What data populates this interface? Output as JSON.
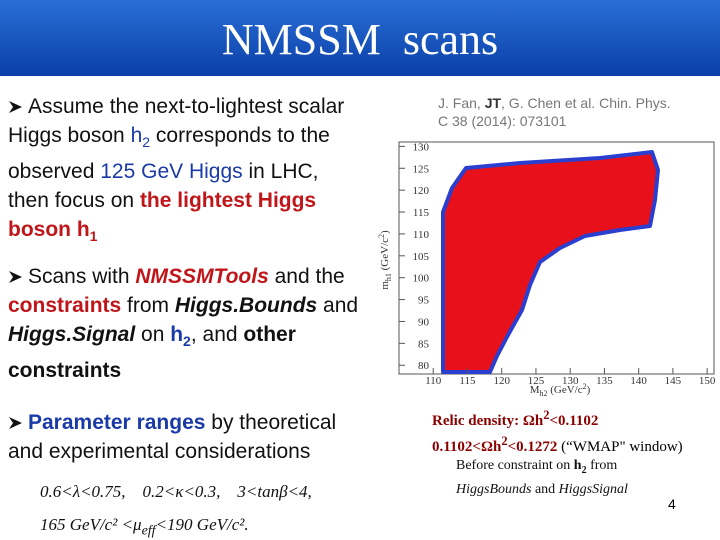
{
  "title": "NMSSM  scans",
  "bullets": [
    {
      "runs": [
        "Assume the next-to-lightest scalar",
        "Higgs boson ",
        "h",
        "2",
        " corresponds to the",
        "observed ",
        "125 GeV Higgs",
        " in LHC,",
        "then focus on ",
        "the lightest Higgs",
        "boson h",
        "1"
      ]
    },
    {
      "runs": [
        "Scans with ",
        "NMSSMTools",
        " and the",
        "constraints",
        " from ",
        "Higgs.Bounds",
        " and",
        "Higgs.Signal",
        " on ",
        "h",
        "2",
        ", and ",
        "other",
        "constraints"
      ]
    },
    {
      "runs": [
        "Parameter ranges",
        " by theoretical",
        "and experimental considerations"
      ]
    }
  ],
  "formulas": [
    "0.6<λ<0.75,    0.2<κ<0.3,    3<tanβ<4,",
    "165 GeV/c² <μ",
    "eff",
    "<190 GeV/c²."
  ],
  "citation": [
    "J. Fan, ",
    "JT",
    ", G. Chen et al.  Chin. Phys.",
    "C 38 (2014): 073101"
  ],
  "figure": {
    "xlim": [
      105,
      151
    ],
    "ylim": [
      78,
      131
    ],
    "xticks": [
      110,
      115,
      120,
      125,
      130,
      135,
      140,
      145,
      150
    ],
    "yticks": [
      80,
      85,
      90,
      95,
      100,
      105,
      110,
      115,
      120,
      125,
      130
    ],
    "xlabel": [
      "M",
      "h2",
      " (GeV/c",
      "2",
      ")"
    ],
    "ylabel": [
      "m",
      "h1",
      " (GeV/c",
      "2",
      ")"
    ]
  },
  "relic": [
    "Relic density:  ",
    "Ωh",
    "2",
    "<0.1102",
    "0.1102<Ωh",
    "2",
    "<0.1272",
    " (“WMAP\" window)"
  ],
  "before": [
    "Before  constraint on ",
    "h",
    "2",
    " from",
    "HiggsBounds",
    " and ",
    "HiggsSignal"
  ],
  "page_number": "4"
}
